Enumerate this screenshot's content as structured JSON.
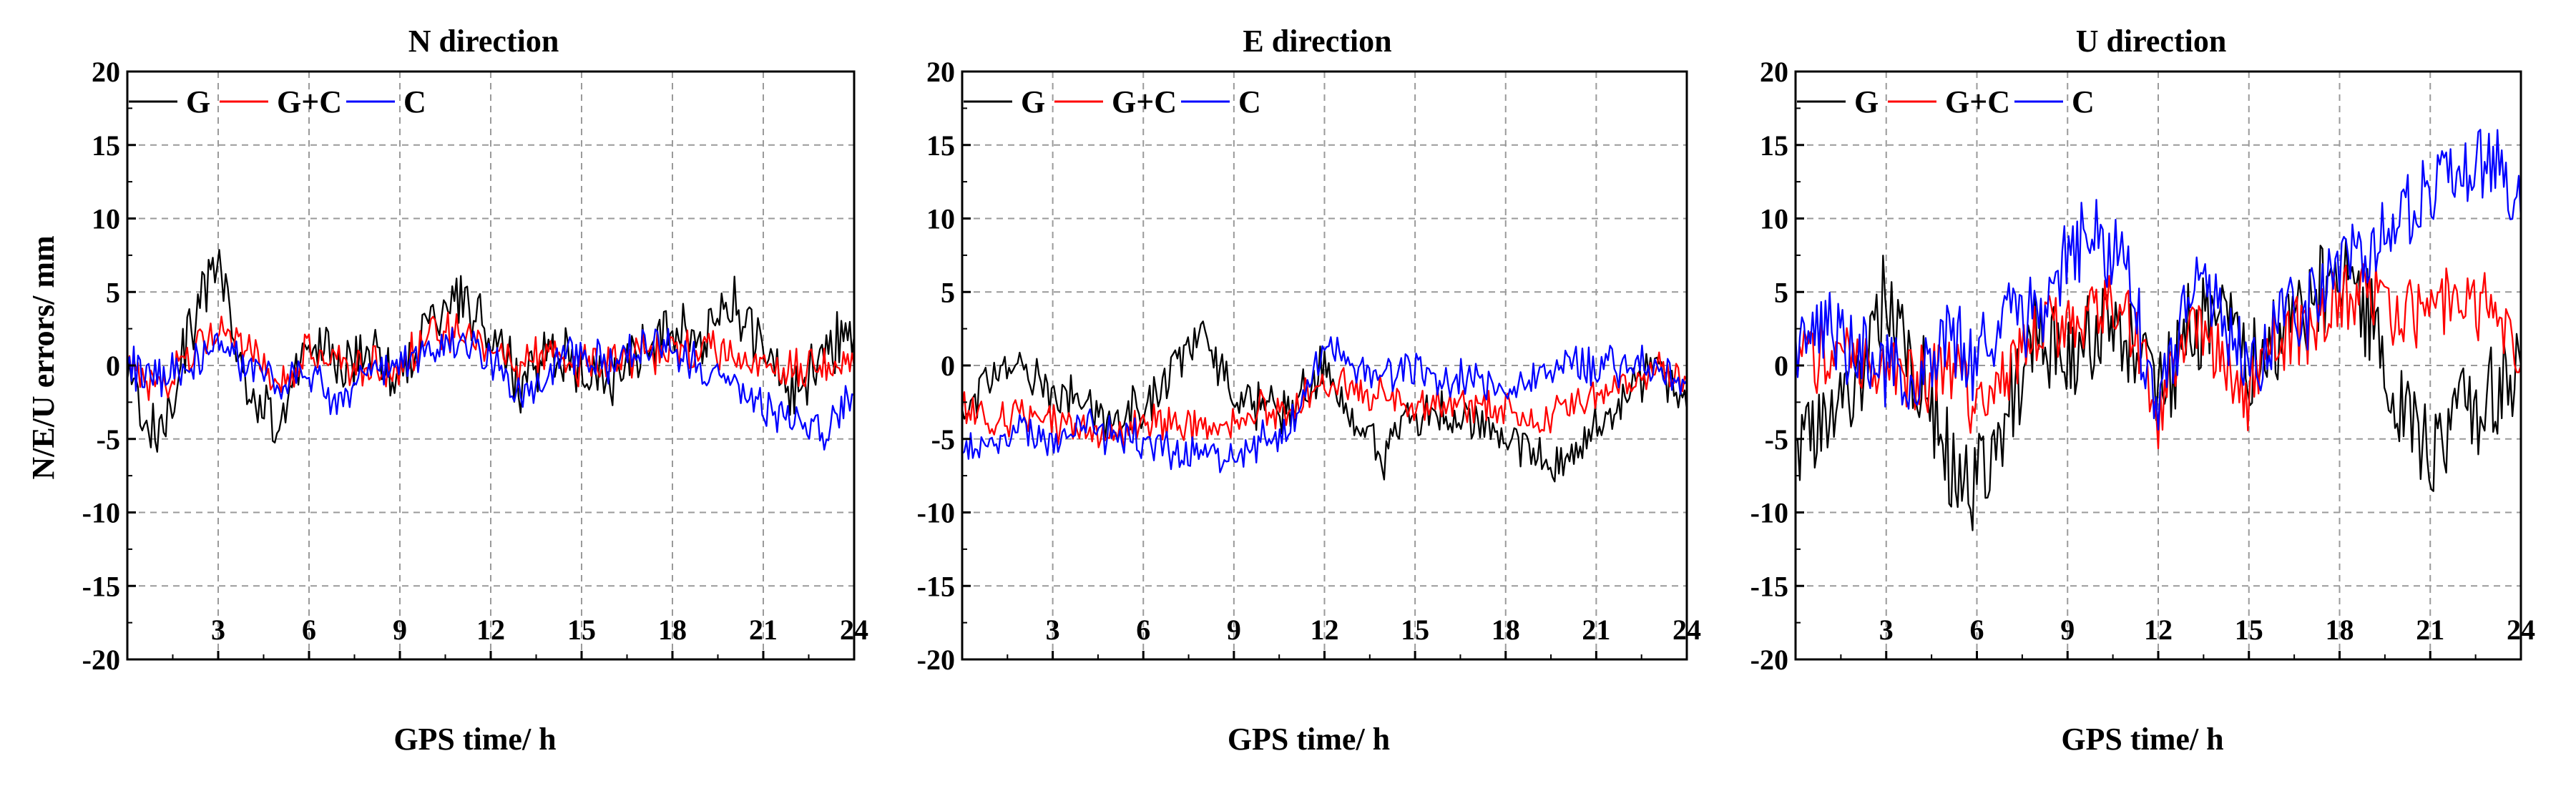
{
  "figure": {
    "ylabel": "N/E/U errors/ mm",
    "xlabel": "GPS time/ h"
  },
  "chart_data": [
    {
      "type": "line",
      "title": "N direction",
      "xlabel": "GPS time/ h",
      "ylabel": "N/E/U errors/ mm",
      "xlim": [
        0,
        24
      ],
      "ylim": [
        -20,
        20
      ],
      "xticks": [
        3,
        6,
        9,
        12,
        15,
        18,
        21,
        24
      ],
      "yticks": [
        20,
        15,
        10,
        5,
        0,
        -5,
        -10,
        -15,
        -20
      ],
      "grid": true,
      "legend_position": "top-left",
      "x": [
        0,
        1,
        2,
        3,
        4,
        5,
        6,
        7,
        8,
        9,
        10,
        11,
        12,
        13,
        14,
        15,
        16,
        17,
        18,
        19,
        20,
        21,
        22,
        23,
        24
      ],
      "series": [
        {
          "name": "G",
          "color": "#000000",
          "values": [
            -1,
            -5,
            2,
            7,
            -2,
            -4,
            2,
            0,
            1,
            -1,
            3,
            5,
            2,
            -1,
            1,
            0,
            -1,
            1,
            3,
            2,
            4,
            1,
            -2,
            1,
            2
          ]
        },
        {
          "name": "G+C",
          "color": "#ff0000",
          "values": [
            0,
            -2,
            1,
            3,
            1,
            -2,
            1,
            0,
            0,
            0,
            2,
            2,
            1,
            0,
            1,
            0,
            0,
            1,
            1,
            1,
            1,
            0,
            0,
            0,
            0
          ]
        },
        {
          "name": "C",
          "color": "#0000ff",
          "values": [
            0,
            -1,
            0,
            1,
            0,
            -1,
            0,
            -3,
            0,
            0,
            1,
            2,
            0,
            -2,
            0,
            1,
            0,
            1,
            1,
            0,
            -1,
            -3,
            -4,
            -5,
            -2
          ]
        }
      ]
    },
    {
      "type": "line",
      "title": "E direction",
      "xlabel": "GPS time/ h",
      "ylabel": "",
      "xlim": [
        0,
        24
      ],
      "ylim": [
        -20,
        20
      ],
      "xticks": [
        3,
        6,
        9,
        12,
        15,
        18,
        21,
        24
      ],
      "yticks": [
        20,
        15,
        10,
        5,
        0,
        -5,
        -10,
        -15,
        -20
      ],
      "grid": true,
      "legend_position": "top-left",
      "x": [
        0,
        1,
        2,
        3,
        4,
        5,
        6,
        7,
        8,
        9,
        10,
        11,
        12,
        13,
        14,
        15,
        16,
        17,
        18,
        19,
        20,
        21,
        22,
        23,
        24
      ],
      "series": [
        {
          "name": "G",
          "color": "#000000",
          "values": [
            -3,
            -1,
            0,
            -2,
            -2,
            -4,
            -3,
            0,
            2,
            -2,
            -3,
            -3,
            0,
            -4,
            -6,
            -3,
            -3,
            -4,
            -5,
            -6,
            -7,
            -4,
            -2,
            0,
            -3
          ]
        },
        {
          "name": "G+C",
          "color": "#ff0000",
          "values": [
            -3,
            -4,
            -3,
            -4,
            -4,
            -5,
            -4,
            -4,
            -4,
            -4,
            -3,
            -3,
            -1,
            -2,
            -2,
            -3,
            -2,
            -3,
            -3,
            -4,
            -3,
            -2,
            -1,
            0,
            -1
          ]
        },
        {
          "name": "C",
          "color": "#0000ff",
          "values": [
            -6,
            -5,
            -4,
            -5,
            -4,
            -5,
            -5,
            -6,
            -6,
            -6,
            -5,
            -4,
            1,
            0,
            -1,
            0,
            -1,
            -1,
            -2,
            -1,
            0,
            0,
            0,
            0,
            -1
          ]
        }
      ]
    },
    {
      "type": "line",
      "title": "U direction",
      "xlabel": "GPS time/ h",
      "ylabel": "",
      "xlim": [
        0,
        24
      ],
      "ylim": [
        -20,
        20
      ],
      "xticks": [
        3,
        6,
        9,
        12,
        15,
        18,
        21,
        24
      ],
      "yticks": [
        20,
        15,
        10,
        5,
        0,
        -5,
        -10,
        -15,
        -20
      ],
      "grid": true,
      "legend_position": "top-left",
      "x": [
        0,
        1,
        2,
        3,
        4,
        5,
        6,
        7,
        8,
        9,
        10,
        11,
        12,
        13,
        14,
        15,
        16,
        17,
        18,
        19,
        20,
        21,
        22,
        23,
        24
      ],
      "series": [
        {
          "name": "G",
          "color": "#000000",
          "values": [
            -5,
            -3,
            -2,
            5,
            0,
            -6,
            -8,
            -3,
            2,
            0,
            3,
            2,
            -2,
            2,
            3,
            0,
            2,
            4,
            6,
            3,
            -3,
            -6,
            -4,
            -2,
            0
          ]
        },
        {
          "name": "G+C",
          "color": "#ff0000",
          "values": [
            0,
            1,
            0,
            0,
            -1,
            0,
            -3,
            0,
            2,
            3,
            4,
            3,
            -3,
            2,
            1,
            -2,
            2,
            2,
            5,
            5,
            3,
            4,
            5,
            4,
            0
          ]
        },
        {
          "name": "C",
          "color": "#0000ff",
          "values": [
            2,
            3,
            1,
            0,
            -1,
            2,
            0,
            4,
            3,
            8,
            9,
            6,
            -3,
            5,
            4,
            -1,
            3,
            4,
            7,
            8,
            10,
            12,
            14,
            14,
            10
          ]
        }
      ]
    }
  ]
}
